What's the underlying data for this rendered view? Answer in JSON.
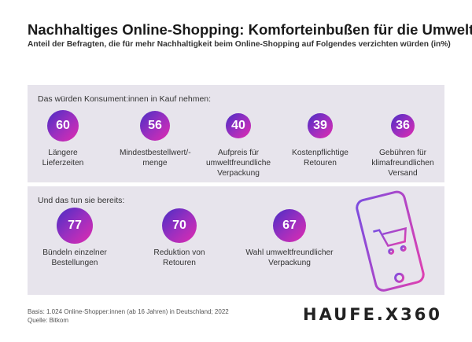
{
  "title": "Nachhaltiges Online-Shopping: Komforteinbußen für die Umwelt",
  "subtitle": "Anteil der Befragten, die für mehr Nachhaltigkeit beim Online-Shopping auf Folgendes verzichten würden (in%)",
  "chart_data": [
    {
      "type": "bubble",
      "title": "Das würden Konsument:innen in Kauf nehmen:",
      "categories": [
        "Längere Lieferzeiten",
        "Mindestbestellwert/-menge",
        "Aufpreis für umweltfreundliche Verpackung",
        "Kostenpflichtige Retouren",
        "Gebühren für klimafreundlichen Versand"
      ],
      "values": [
        60,
        56,
        40,
        39,
        36
      ]
    },
    {
      "type": "bubble",
      "title": "Und das tun sie bereits:",
      "categories": [
        "Bündeln einzelner Bestellungen",
        "Reduktion von Retouren",
        "Wahl umweltfreundlicher Verpackung"
      ],
      "values": [
        77,
        70,
        67
      ]
    }
  ],
  "note": "Basis: 1.024 Online-Shopper:innen (ab 16 Jahren) in Deutschland; 2022",
  "source": "Quelle: Bitkom",
  "logo": "HAUFE.X360"
}
